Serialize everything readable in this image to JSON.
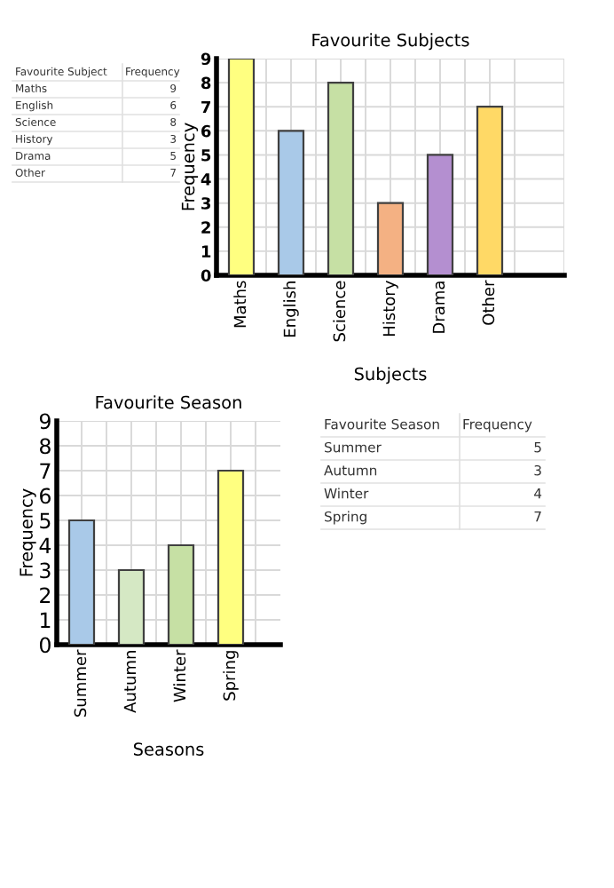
{
  "chart_data": [
    {
      "type": "other",
      "annotations": [
        "Favourite Subject",
        "Frequency",
        "Maths",
        "9",
        "English",
        "6",
        "Science",
        "8",
        "History",
        "3",
        "Drama",
        "5",
        "Other",
        "7"
      ]
    },
    {
      "type": "bar",
      "title": "Favourite Subjects",
      "xlabel": "Subjects",
      "ylabel": "Frequency",
      "categories": [
        "Maths",
        "English",
        "Science",
        "History",
        "Drama",
        "Other"
      ],
      "values": [
        9,
        6,
        8,
        3,
        5,
        7
      ],
      "colors": [
        "#ffff80",
        "#a9c9e8",
        "#c6e0a4",
        "#f4b183",
        "#b48fd0",
        "#ffd966"
      ],
      "ylim": [
        0,
        9
      ],
      "yticks": [
        0,
        1,
        2,
        3,
        4,
        5,
        6,
        7,
        8,
        9
      ],
      "grid": true
    },
    {
      "type": "bar",
      "title": "Favourite Season",
      "xlabel": "Seasons",
      "ylabel": "Frequency",
      "categories": [
        "Summer",
        "Autumn",
        "Winter",
        "Spring"
      ],
      "values": [
        5,
        3,
        4,
        7
      ],
      "colors": [
        "#a9c9e8",
        "#d5e8c4",
        "#c6e0a4",
        "#ffff80"
      ],
      "ylim": [
        0,
        9
      ],
      "yticks": [
        0,
        1,
        2,
        3,
        4,
        5,
        6,
        7,
        8,
        9
      ],
      "grid": true
    },
    {
      "type": "other",
      "annotations": [
        "Favourite Season",
        "Frequency",
        "Summer",
        "5",
        "Autumn",
        "3",
        "Winter",
        "4",
        "Spring",
        "7"
      ]
    }
  ]
}
